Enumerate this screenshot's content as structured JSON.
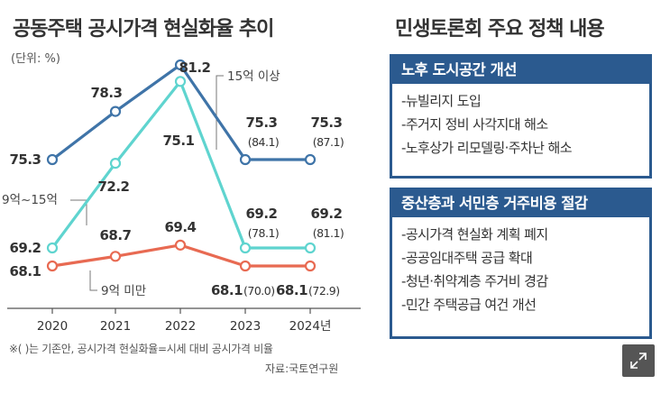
{
  "chart_title": "공동주택 공시가격 현실화율 추이",
  "unit_label": "(단위: %)",
  "chart_data": {
    "type": "line",
    "title": "공동주택 공시가격 현실화율 추이",
    "unit": "%",
    "categories": [
      "2020",
      "2021",
      "2022",
      "2023",
      "2024년"
    ],
    "ylim": [
      64,
      84
    ],
    "series": [
      {
        "name": "15억 이상",
        "color": "#3f74a8",
        "values": [
          75.3,
          78.3,
          81.2,
          75.3,
          75.3
        ],
        "labels": [
          "75.3",
          "78.3",
          "81.2",
          "75.3",
          "75.3"
        ],
        "paren": [
          null,
          null,
          null,
          "(84.1)",
          "(87.1)"
        ]
      },
      {
        "name": "9억~15억",
        "color": "#5fd4cf",
        "values": [
          69.2,
          72.2,
          75.1,
          69.2,
          69.2
        ],
        "labels": [
          "69.2",
          "72.2",
          "75.1",
          "69.2",
          "69.2"
        ],
        "paren": [
          null,
          null,
          null,
          "(78.1)",
          "(81.1)"
        ]
      },
      {
        "name": "9억 미만",
        "color": "#e86a52",
        "values": [
          68.1,
          68.7,
          69.4,
          68.1,
          68.1
        ],
        "labels": [
          "68.1",
          "68.7",
          "69.4",
          "68.1",
          "68.1"
        ],
        "paren": [
          null,
          null,
          null,
          "(70.0)",
          "(72.9)"
        ]
      }
    ]
  },
  "footnote": "※( )는 기존안, 공시가격 현실화율=시세 대비 공시가격 비율",
  "source": "자료:국토연구원",
  "policy": {
    "title": "민생토론회 주요 정책 내용",
    "boxes": [
      {
        "header": "노후 도시공간 개선",
        "items": [
          "-뉴빌리지 도입",
          "-주거지 정비 사각지대 해소",
          "-노후상가 리모델링·주차난 해소"
        ]
      },
      {
        "header": "중산층과 서민층 거주비용 절감",
        "items": [
          "-공시가격 현실화 계획 폐지",
          "-공공임대주택 공급 확대",
          "-청년·취약계층 주거비 경감",
          "-민간 주택공급 여건 개선"
        ]
      }
    ]
  },
  "expand_icon": "expand-icon"
}
